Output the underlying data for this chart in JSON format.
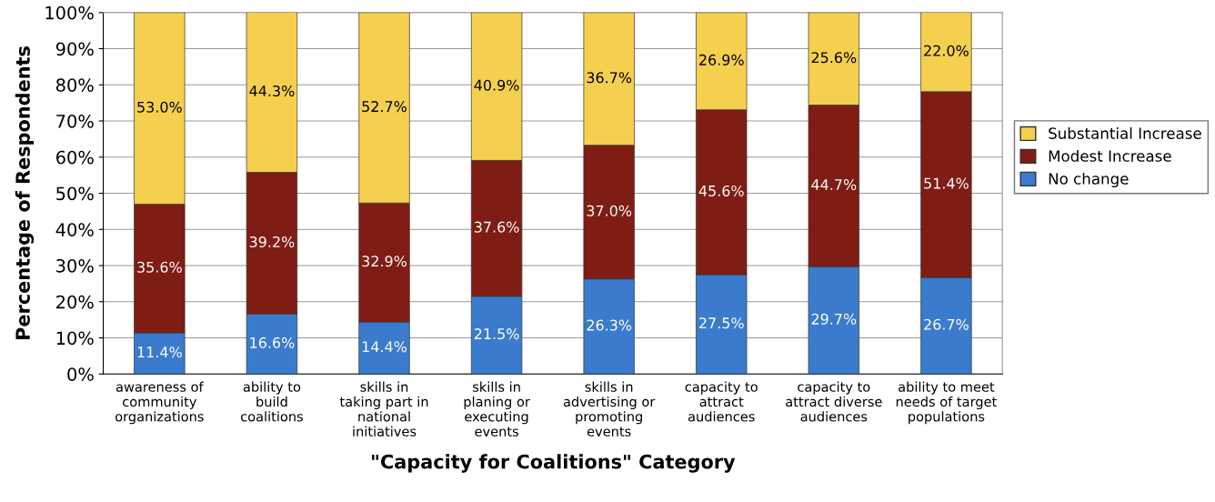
{
  "chart_data": {
    "type": "bar",
    "stacked": true,
    "xlabel": "\"Capacity for Coalitions\" Category",
    "ylabel": "Percentage of Respondents",
    "categories": [
      "awareness of community organizations",
      "ability to build coalitions",
      "skills in taking part in national initiatives",
      "skills in planing or executing events",
      "skills in advertising or promoting events",
      "capacity to attract audiences",
      "capacity to attract diverse audiences",
      "ability to meet needs of target populations"
    ],
    "series": [
      {
        "name": "No change",
        "color": "#3a7bcd",
        "values": [
          11.4,
          16.6,
          14.4,
          21.5,
          26.3,
          27.5,
          29.7,
          26.7
        ],
        "value_labels": [
          "11.4%",
          "16.6%",
          "14.4%",
          "21.5%",
          "26.3%",
          "27.5%",
          "29.7%",
          "26.7%"
        ]
      },
      {
        "name": "Modest Increase",
        "color": "#7f1d14",
        "values": [
          35.6,
          39.2,
          32.9,
          37.6,
          37.0,
          45.6,
          44.7,
          51.4
        ],
        "value_labels": [
          "35.6%",
          "39.2%",
          "32.9%",
          "37.6%",
          "37.0%",
          "45.6%",
          "44.7%",
          "51.4%"
        ]
      },
      {
        "name": "Substantial Increase",
        "color": "#f5d04e",
        "values": [
          53.0,
          44.3,
          52.7,
          40.9,
          36.7,
          26.9,
          25.6,
          22.0
        ],
        "value_labels": [
          "53.0%",
          "44.3%",
          "52.7%",
          "40.9%",
          "36.7%",
          "26.9%",
          "25.6%",
          "22.0%"
        ]
      }
    ],
    "ylim": [
      0,
      100
    ],
    "yticks": [
      {
        "value": 0,
        "label": "0%"
      },
      {
        "value": 10,
        "label": "10%"
      },
      {
        "value": 20,
        "label": "20%"
      },
      {
        "value": 30,
        "label": "30%"
      },
      {
        "value": 40,
        "label": "40%"
      },
      {
        "value": 50,
        "label": "50%"
      },
      {
        "value": 60,
        "label": "60%"
      },
      {
        "value": 70,
        "label": "70%"
      },
      {
        "value": 80,
        "label": "80%"
      },
      {
        "value": 90,
        "label": "90%"
      },
      {
        "value": 100,
        "label": "100%"
      }
    ],
    "grid": "y",
    "legend": "right"
  }
}
